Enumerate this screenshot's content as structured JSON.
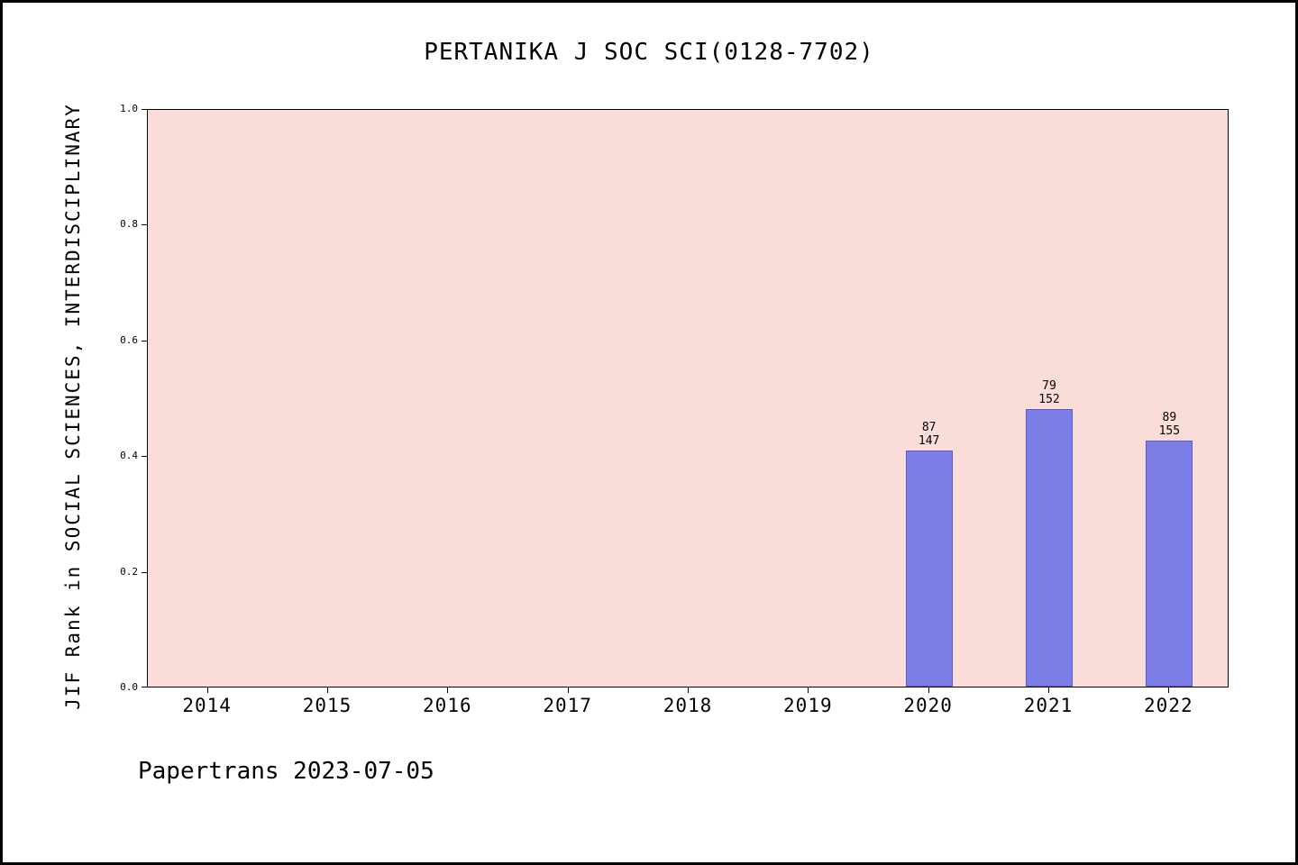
{
  "chart_data": {
    "type": "bar",
    "title": "PERTANIKA J SOC SCI(0128-7702)",
    "ylabel": "JIF Rank in SOCIAL SCIENCES, INTERDISCIPLINARY",
    "xlabel": "",
    "ylim": [
      0.0,
      1.0
    ],
    "yticks": [
      "0.0",
      "0.2",
      "0.4",
      "0.6",
      "0.8",
      "1.0"
    ],
    "categories": [
      "2014",
      "2015",
      "2016",
      "2017",
      "2018",
      "2019",
      "2020",
      "2021",
      "2022"
    ],
    "bars": [
      {
        "year": "2020",
        "rank": "87",
        "total": "147",
        "value": 0.408
      },
      {
        "year": "2021",
        "rank": "79",
        "total": "152",
        "value": 0.48
      },
      {
        "year": "2022",
        "rank": "89",
        "total": "155",
        "value": 0.426
      }
    ],
    "legend": null,
    "grid": false,
    "colors": {
      "bar_fill": "#7d7de8",
      "bar_border": "#5a5ad0",
      "plot_background": "#fadcd9",
      "axis": "#000000",
      "page_background": "#ffffff"
    }
  },
  "footer": {
    "text": "Papertrans 2023-07-05"
  }
}
